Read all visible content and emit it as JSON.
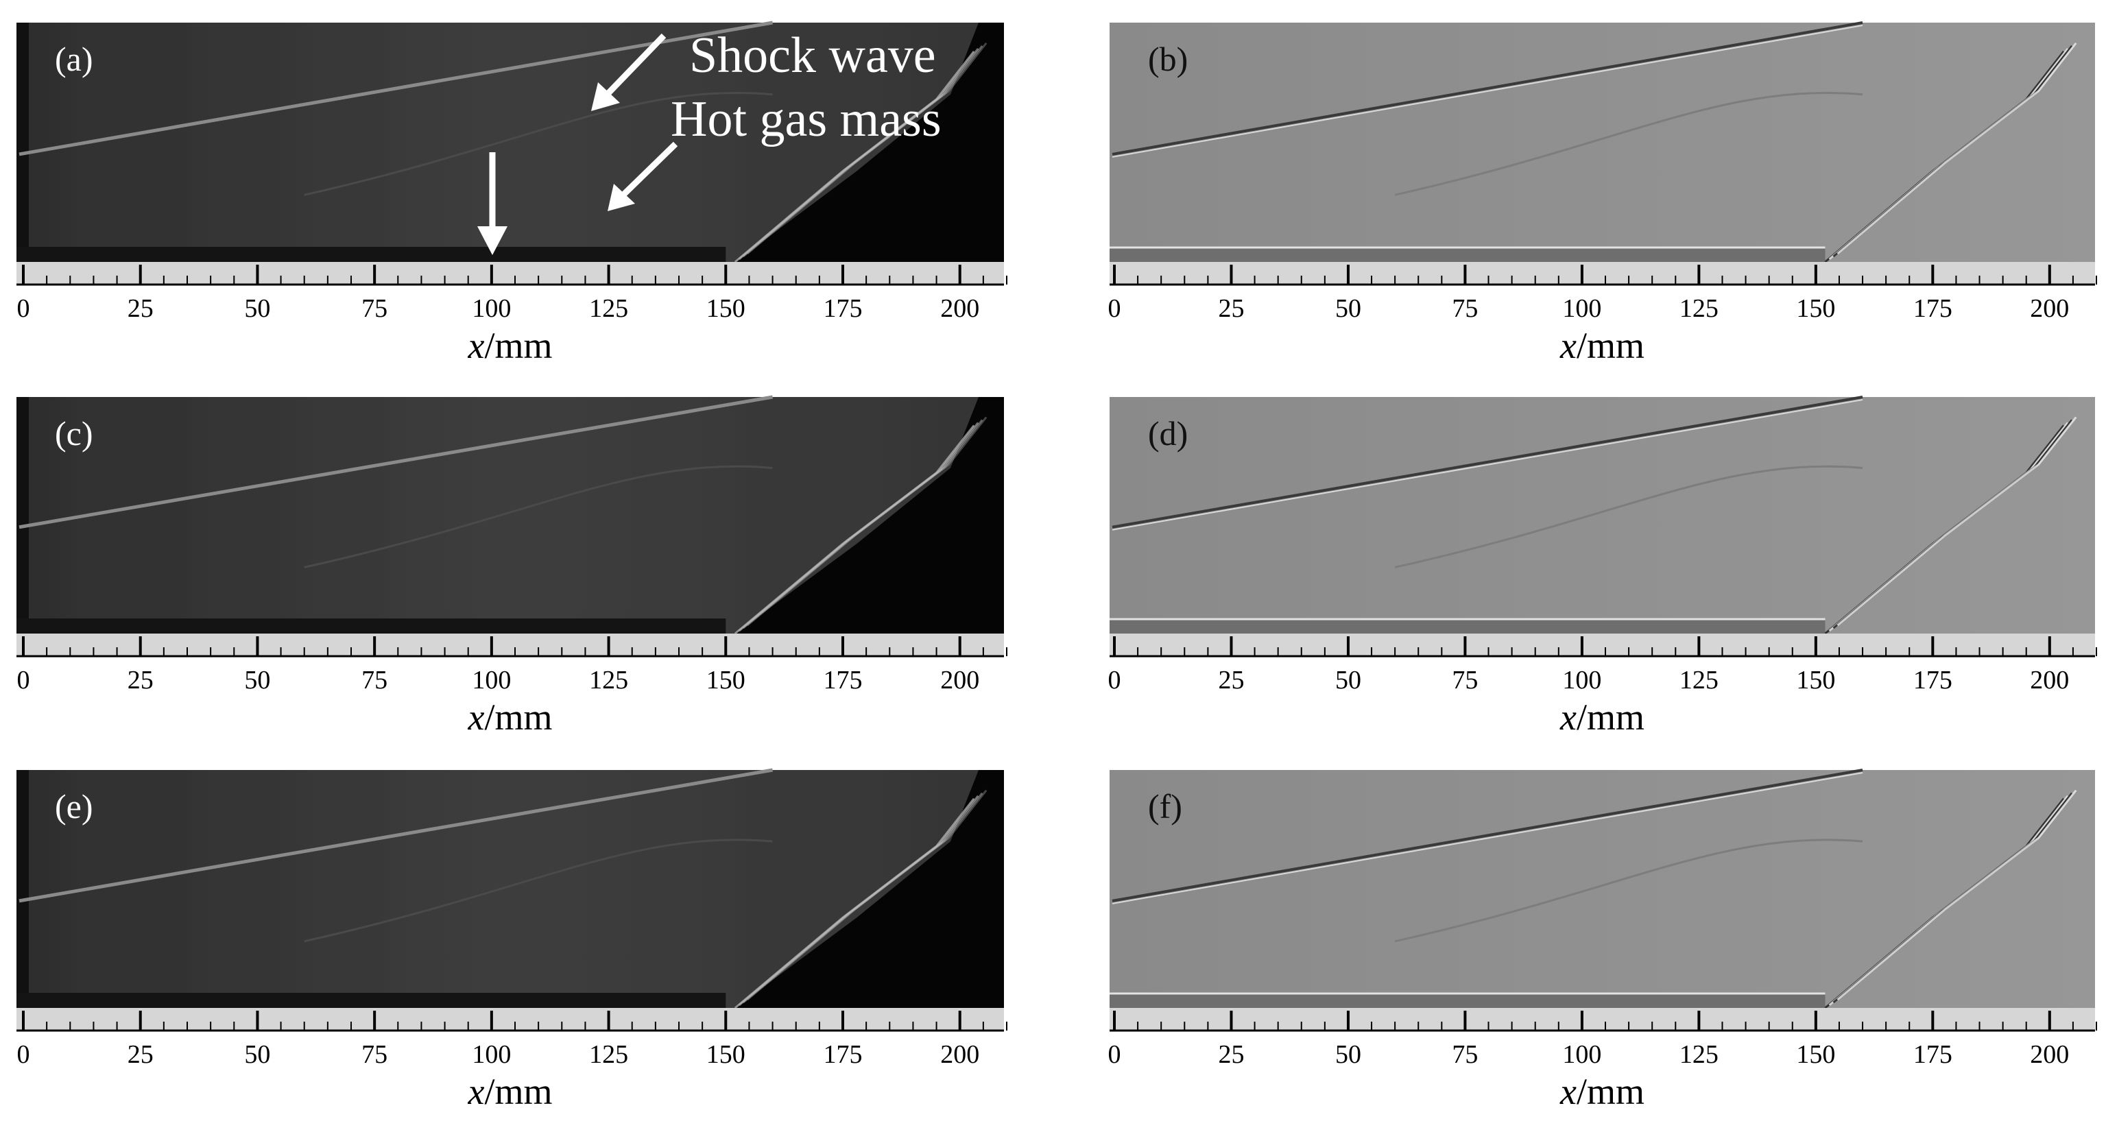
{
  "figure": {
    "panels": [
      {
        "id": "a",
        "label": "(a)",
        "style": "schlieren"
      },
      {
        "id": "b",
        "label": "(b)",
        "style": "gradient"
      },
      {
        "id": "c",
        "label": "(c)",
        "style": "schlieren"
      },
      {
        "id": "d",
        "label": "(d)",
        "style": "gradient"
      },
      {
        "id": "e",
        "label": "(e)",
        "style": "schlieren"
      },
      {
        "id": "f",
        "label": "(f)",
        "style": "gradient"
      }
    ],
    "axis": {
      "xlabel": "x/mm",
      "xlabel_italic": "x",
      "xlabel_unit": "/mm",
      "range": [
        0,
        210
      ],
      "ticks": [
        0,
        25,
        50,
        75,
        100,
        125,
        150,
        175,
        200
      ],
      "minor_step": 5
    },
    "annotations": {
      "shock_wave": "Shock wave",
      "hot_gas_mass": "Hot gas mass"
    },
    "colors": {
      "schlieren_bg": "#3b3b3b",
      "schlieren_dark": "#050505",
      "gradient_bg": "#8f8f8f",
      "ruler": "#d6d6d6"
    }
  }
}
